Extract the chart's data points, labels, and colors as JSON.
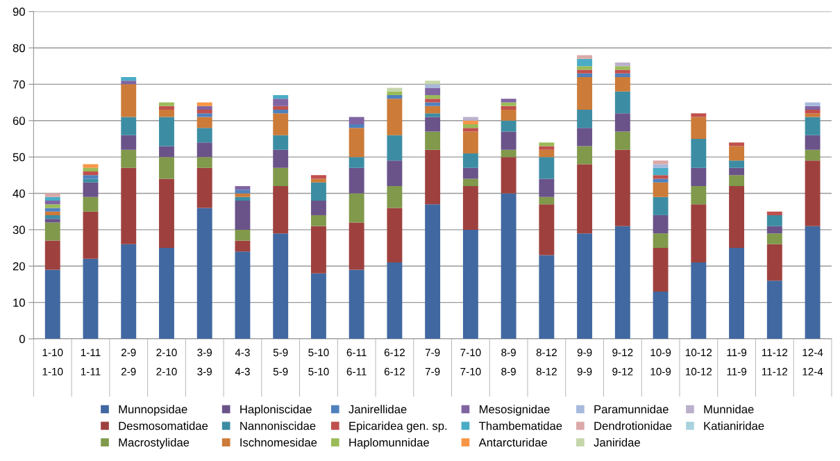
{
  "chart_data": {
    "type": "bar",
    "stacked": true,
    "grid": "y",
    "legend": "bottom",
    "categories": [
      "1-10\n1-10",
      "1-11\n1-11",
      "2-9\n2-9",
      "2-10\n2-10",
      "3-9\n3-9",
      "4-3\n4-3",
      "5-9\n5-9",
      "5-10\n5-10",
      "6-11\n6-11",
      "6-12\n6-12",
      "7-9\n7-9",
      "7-10\n7-10",
      "8-9\n8-9",
      "8-12\n8-12",
      "9-9\n9-9",
      "9-12\n9-12",
      "10-9\n10-9",
      "10-12\n10-12",
      "11-9\n11-9",
      "11-12\n11-12",
      "12-4\n12-4"
    ],
    "ylim": [
      0,
      90
    ],
    "yticks": [
      0,
      10,
      20,
      30,
      40,
      50,
      60,
      70,
      80,
      90
    ],
    "series": [
      {
        "name": "Munnopsidae",
        "color": "#4168a0",
        "values": [
          19,
          22,
          26,
          25,
          36,
          24,
          29,
          18,
          19,
          21,
          37,
          30,
          40,
          23,
          29,
          31,
          13,
          21,
          25,
          16,
          31
        ]
      },
      {
        "name": "Desmosomatidae",
        "color": "#9e413e",
        "values": [
          8,
          13,
          21,
          19,
          11,
          3,
          13,
          13,
          13,
          15,
          15,
          12,
          10,
          14,
          19,
          21,
          12,
          16,
          17,
          10,
          18
        ]
      },
      {
        "name": "Macrostylidae",
        "color": "#80994b",
        "values": [
          5,
          4,
          5,
          6,
          3,
          3,
          5,
          3,
          8,
          6,
          5,
          2,
          2,
          2,
          5,
          5,
          4,
          5,
          3,
          3,
          3
        ]
      },
      {
        "name": "Haploniscidae",
        "color": "#6a5389",
        "values": [
          1,
          4,
          4,
          3,
          4,
          8,
          5,
          4,
          7,
          7,
          4,
          3,
          5,
          5,
          5,
          5,
          5,
          5,
          2,
          2,
          4
        ]
      },
      {
        "name": "Nannoniscidae",
        "color": "#3c8da3",
        "values": [
          1,
          1,
          5,
          8,
          4,
          1,
          4,
          5,
          3,
          7,
          1,
          4,
          3,
          6,
          5,
          6,
          5,
          8,
          2,
          3,
          5
        ]
      },
      {
        "name": "Ischnomesidae",
        "color": "#cc7b38",
        "values": [
          1,
          0,
          9,
          2,
          3,
          1,
          6,
          1,
          8,
          10,
          2,
          6,
          3,
          2,
          9,
          4,
          4,
          6,
          4,
          0,
          1
        ]
      },
      {
        "name": "Janirellidae",
        "color": "#4f81bd",
        "values": [
          1,
          1,
          0,
          0,
          1,
          1,
          1,
          0,
          1,
          1,
          1,
          0,
          0,
          0,
          1,
          1,
          1,
          0,
          0,
          0,
          0
        ]
      },
      {
        "name": "Epicaridea gen. sp.",
        "color": "#c0504d",
        "values": [
          0,
          1,
          0,
          1,
          1,
          0,
          1,
          1,
          0,
          0,
          1,
          1,
          1,
          1,
          1,
          1,
          1,
          1,
          1,
          1,
          1
        ]
      },
      {
        "name": "Haplomunnidae",
        "color": "#9bbb59",
        "values": [
          1,
          1,
          0,
          1,
          0,
          0,
          0,
          0,
          0,
          1,
          1,
          1,
          1,
          1,
          1,
          1,
          0,
          0,
          0,
          0,
          0
        ]
      },
      {
        "name": "Mesosignidae",
        "color": "#8064a2",
        "values": [
          1,
          0,
          1,
          0,
          1,
          1,
          2,
          0,
          2,
          0,
          2,
          0,
          1,
          0,
          0,
          0,
          0,
          0,
          0,
          0,
          1
        ]
      },
      {
        "name": "Thambematidae",
        "color": "#4bacc6",
        "values": [
          1,
          0,
          1,
          0,
          0,
          0,
          1,
          0,
          0,
          0,
          0,
          0,
          0,
          0,
          2,
          0,
          2,
          0,
          0,
          0,
          0
        ]
      },
      {
        "name": "Antarcturidae",
        "color": "#f79646",
        "values": [
          0,
          1,
          0,
          0,
          1,
          0,
          0,
          0,
          0,
          0,
          0,
          1,
          0,
          0,
          0,
          0,
          0,
          0,
          0,
          0,
          0
        ]
      },
      {
        "name": "Paramunnidae",
        "color": "#a7b9dc",
        "values": [
          0,
          0,
          0,
          0,
          0,
          0,
          0,
          0,
          0,
          0,
          1,
          0,
          0,
          0,
          0,
          0,
          1,
          0,
          0,
          0,
          1
        ]
      },
      {
        "name": "Dendrotionidae",
        "color": "#dba9a8",
        "values": [
          1,
          0,
          0,
          0,
          0,
          0,
          0,
          0,
          0,
          0,
          0,
          0,
          0,
          0,
          1,
          0,
          1,
          0,
          0,
          0,
          0
        ]
      },
      {
        "name": "Janiridae",
        "color": "#c5d6a9",
        "values": [
          0,
          0,
          0,
          0,
          0,
          0,
          0,
          0,
          0,
          1,
          1,
          0,
          0,
          0,
          0,
          0,
          0,
          0,
          0,
          0,
          0
        ]
      },
      {
        "name": "Munnidae",
        "color": "#bbb0cc",
        "values": [
          0,
          0,
          0,
          0,
          0,
          0,
          0,
          0,
          0,
          0,
          0,
          1,
          0,
          0,
          0,
          1,
          0,
          0,
          0,
          0,
          0
        ]
      },
      {
        "name": "Katianiridae",
        "color": "#a9d2de",
        "values": [
          0,
          0,
          0,
          0,
          0,
          0,
          0,
          0,
          0,
          0,
          0,
          0,
          0,
          0,
          0,
          0,
          0,
          0,
          0,
          0,
          0
        ]
      }
    ]
  }
}
